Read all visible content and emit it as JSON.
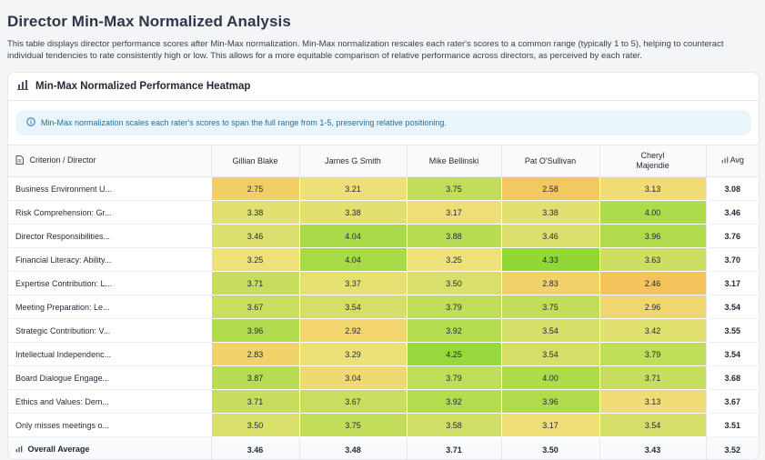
{
  "page": {
    "title": "Director Min-Max Normalized Analysis",
    "description": "This table displays director performance scores after Min-Max normalization. Min-Max normalization rescales each rater's scores to a common range (typically 1 to 5), helping to counteract individual tendencies to rate consistently high or low. This allows for a more equitable comparison of relative performance across directors, as perceived by each rater."
  },
  "card": {
    "title": "Min-Max Normalized Performance Heatmap",
    "title_icon": "bar-chart-icon",
    "info_icon": "info-circle-icon",
    "info_text": "Min-Max normalization scales each rater's scores to span the full range from 1-5, preserving relative positioning."
  },
  "table": {
    "corner_label": "Criterion / Director",
    "corner_icon": "document-icon",
    "avg_label": "Avg",
    "avg_icon": "bar-chart-icon",
    "directors": [
      "Gillian Blake",
      "James G Smith",
      "Mike Bellinski",
      "Pat O'Sullivan",
      "Cheryl Majendie"
    ],
    "rows": [
      {
        "label": "Business Environment U...",
        "values": [
          "2.75",
          "3.21",
          "3.75",
          "2.58",
          "3.13"
        ],
        "avg": "3.08"
      },
      {
        "label": "Risk Comprehension: Gr...",
        "values": [
          "3.38",
          "3.38",
          "3.17",
          "3.38",
          "4.00"
        ],
        "avg": "3.46"
      },
      {
        "label": "Director Responsibilities...",
        "values": [
          "3.46",
          "4.04",
          "3.88",
          "3.46",
          "3.96"
        ],
        "avg": "3.76"
      },
      {
        "label": "Financial Literacy: Ability...",
        "values": [
          "3.25",
          "4.04",
          "3.25",
          "4.33",
          "3.63"
        ],
        "avg": "3.70"
      },
      {
        "label": "Expertise Contribution: L...",
        "values": [
          "3.71",
          "3.37",
          "3.50",
          "2.83",
          "2.46"
        ],
        "avg": "3.17"
      },
      {
        "label": "Meeting Preparation: Le...",
        "values": [
          "3.67",
          "3.54",
          "3.79",
          "3.75",
          "2.96"
        ],
        "avg": "3.54"
      },
      {
        "label": "Strategic Contribution: V...",
        "values": [
          "3.96",
          "2.92",
          "3.92",
          "3.54",
          "3.42"
        ],
        "avg": "3.55"
      },
      {
        "label": "Intellectual Independenc...",
        "values": [
          "2.83",
          "3.29",
          "4.25",
          "3.54",
          "3.79"
        ],
        "avg": "3.54"
      },
      {
        "label": "Board Dialogue Engage...",
        "values": [
          "3.87",
          "3.04",
          "3.79",
          "4.00",
          "3.71"
        ],
        "avg": "3.68"
      },
      {
        "label": "Ethics and Values: Dem...",
        "values": [
          "3.71",
          "3.67",
          "3.92",
          "3.96",
          "3.13"
        ],
        "avg": "3.67"
      },
      {
        "label": "Only misses meetings o...",
        "values": [
          "3.50",
          "3.75",
          "3.58",
          "3.17",
          "3.54"
        ],
        "avg": "3.51"
      }
    ],
    "overall": {
      "label": "Overall Average",
      "icon": "bar-chart-icon",
      "values": [
        "3.46",
        "3.48",
        "3.71",
        "3.50",
        "3.43"
      ],
      "avg": "3.52"
    }
  },
  "colors": {
    "heat_low": "#f5c15a",
    "heat_mid": "#eee17a",
    "heat_high": "#8ed834",
    "info_bg": "#eaf4fb",
    "info_text": "#1e6fa8"
  }
}
